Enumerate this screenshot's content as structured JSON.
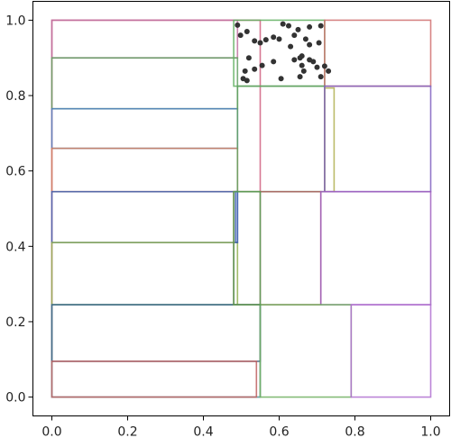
{
  "chart_data": {
    "type": "scatter",
    "title": "",
    "xlabel": "",
    "ylabel": "",
    "xlim": [
      -0.05,
      1.05
    ],
    "ylim": [
      -0.05,
      1.05
    ],
    "grid": false,
    "xticks": [
      0.0,
      0.2,
      0.4,
      0.6,
      0.8,
      1.0
    ],
    "yticks": [
      0.0,
      0.2,
      0.4,
      0.6,
      0.8,
      1.0
    ],
    "xtick_labels": [
      "0.0",
      "0.2",
      "0.4",
      "0.6",
      "0.8",
      "1.0"
    ],
    "ytick_labels": [
      "0.0",
      "0.2",
      "0.4",
      "0.6",
      "0.8",
      "1.0"
    ],
    "rectangles": [
      {
        "x0": 0.0,
        "y0": 0.0,
        "x1": 0.55,
        "y1": 1.0,
        "color": "#d06080"
      },
      {
        "x0": 0.0,
        "y0": 0.9,
        "x1": 0.49,
        "y1": 1.0,
        "color": "#c070a0"
      },
      {
        "x0": 0.0,
        "y0": 0.765,
        "x1": 0.49,
        "y1": 0.9,
        "color": "#60a060"
      },
      {
        "x0": 0.0,
        "y0": 0.66,
        "x1": 0.49,
        "y1": 0.765,
        "color": "#5080c0"
      },
      {
        "x0": 0.0,
        "y0": 0.545,
        "x1": 0.49,
        "y1": 0.66,
        "color": "#d08060"
      },
      {
        "x0": 0.0,
        "y0": 0.41,
        "x1": 0.49,
        "y1": 0.545,
        "color": "#4060b0"
      },
      {
        "x0": 0.0,
        "y0": 0.245,
        "x1": 0.49,
        "y1": 0.41,
        "color": "#90b050"
      },
      {
        "x0": 0.0,
        "y0": 0.0,
        "x1": 0.55,
        "y1": 0.245,
        "color": "#50b0b0"
      },
      {
        "x0": 0.0,
        "y0": 0.095,
        "x1": 0.55,
        "y1": 0.245,
        "color": "#406080"
      },
      {
        "x0": 0.0,
        "y0": 0.0,
        "x1": 0.54,
        "y1": 0.095,
        "color": "#c06060"
      },
      {
        "x0": 0.48,
        "y0": 0.825,
        "x1": 0.72,
        "y1": 1.0,
        "color": "#60b060"
      },
      {
        "x0": 0.72,
        "y0": 0.825,
        "x1": 1.0,
        "y1": 1.0,
        "color": "#d07070"
      },
      {
        "x0": 0.49,
        "y0": 0.545,
        "x1": 0.72,
        "y1": 0.825,
        "color": "#60a060"
      },
      {
        "x0": 0.72,
        "y0": 0.545,
        "x1": 0.745,
        "y1": 0.82,
        "color": "#b0b050"
      },
      {
        "x0": 0.72,
        "y0": 0.545,
        "x1": 1.0,
        "y1": 0.825,
        "color": "#8060c0"
      },
      {
        "x0": 0.48,
        "y0": 0.245,
        "x1": 0.71,
        "y1": 0.545,
        "color": "#b06060"
      },
      {
        "x0": 0.485,
        "y0": 0.41,
        "x1": 0.49,
        "y1": 0.545,
        "color": "#4060b0"
      },
      {
        "x0": 0.71,
        "y0": 0.245,
        "x1": 1.0,
        "y1": 0.545,
        "color": "#a060c0"
      },
      {
        "x0": 0.55,
        "y0": 0.0,
        "x1": 0.79,
        "y1": 0.245,
        "color": "#70b060"
      },
      {
        "x0": 0.79,
        "y0": 0.0,
        "x1": 1.0,
        "y1": 0.245,
        "color": "#b070d0"
      },
      {
        "x0": 0.48,
        "y0": 0.245,
        "x1": 0.55,
        "y1": 0.545,
        "color": "#50a050"
      }
    ],
    "points": [
      [
        0.49,
        0.987
      ],
      [
        0.515,
        0.97
      ],
      [
        0.498,
        0.96
      ],
      [
        0.535,
        0.945
      ],
      [
        0.55,
        0.94
      ],
      [
        0.565,
        0.948
      ],
      [
        0.585,
        0.955
      ],
      [
        0.6,
        0.95
      ],
      [
        0.61,
        0.99
      ],
      [
        0.625,
        0.985
      ],
      [
        0.64,
        0.96
      ],
      [
        0.65,
        0.975
      ],
      [
        0.67,
        0.95
      ],
      [
        0.68,
        0.935
      ],
      [
        0.68,
        0.982
      ],
      [
        0.705,
        0.94
      ],
      [
        0.71,
        0.985
      ],
      [
        0.52,
        0.9
      ],
      [
        0.51,
        0.865
      ],
      [
        0.535,
        0.87
      ],
      [
        0.555,
        0.88
      ],
      [
        0.585,
        0.89
      ],
      [
        0.505,
        0.845
      ],
      [
        0.515,
        0.84
      ],
      [
        0.605,
        0.845
      ],
      [
        0.64,
        0.895
      ],
      [
        0.655,
        0.9
      ],
      [
        0.66,
        0.88
      ],
      [
        0.665,
        0.865
      ],
      [
        0.655,
        0.85
      ],
      [
        0.68,
        0.895
      ],
      [
        0.69,
        0.89
      ],
      [
        0.7,
        0.875
      ],
      [
        0.72,
        0.878
      ],
      [
        0.73,
        0.865
      ],
      [
        0.71,
        0.85
      ],
      [
        0.66,
        0.905
      ],
      [
        0.63,
        0.93
      ]
    ]
  }
}
